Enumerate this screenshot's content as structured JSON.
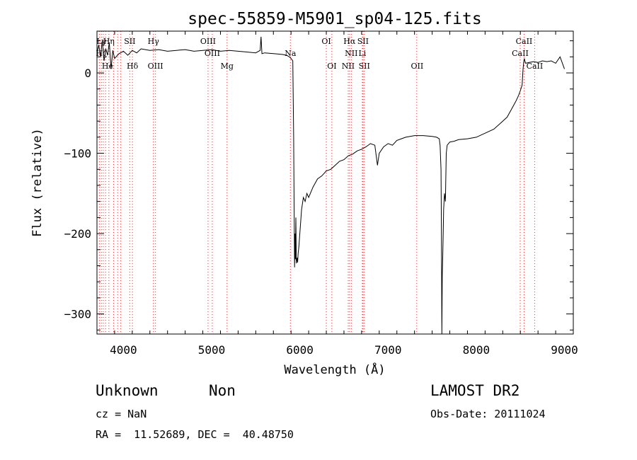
{
  "chart_data": {
    "type": "line",
    "title": "spec-55859-M5901_sp04-125.fits",
    "xlabel": "Wavelength (Å)",
    "ylabel": "Flux (relative)",
    "xlim": [
      3700,
      9100
    ],
    "ylim": [
      -325,
      52
    ],
    "xticks": [
      4000,
      5000,
      6000,
      7000,
      8000,
      9000
    ],
    "yticks": [
      0,
      -100,
      -200,
      -300
    ],
    "grid": false,
    "series": [
      {
        "x": [
          3700,
          3720,
          3740,
          3760,
          3780,
          3800,
          3820,
          3840,
          3860,
          3880,
          3900,
          3950,
          4000,
          4050,
          4100,
          4150,
          4200,
          4300,
          4400,
          4500,
          4600,
          4700,
          4800,
          4900,
          5000,
          5100,
          5200,
          5300,
          5400,
          5500,
          5550,
          5560,
          5570,
          5600,
          5700,
          5800,
          5850,
          5880,
          5900,
          5920,
          5930,
          5935,
          5940,
          5945,
          5950,
          5955,
          5960,
          5970,
          5975,
          5980,
          5990,
          6000,
          6020,
          6040,
          6060,
          6080,
          6100,
          6150,
          6200,
          6250,
          6300,
          6350,
          6400,
          6450,
          6500,
          6550,
          6600,
          6650,
          6700,
          6750,
          6800,
          6850,
          6880,
          6900,
          6950,
          7000,
          7050,
          7100,
          7150,
          7200,
          7300,
          7400,
          7500,
          7550,
          7580,
          7590,
          7600,
          7605,
          7610,
          7615,
          7620,
          7625,
          7630,
          7640,
          7650,
          7660,
          7670,
          7700,
          7750,
          7800,
          7900,
          8000,
          8100,
          8200,
          8300,
          8350,
          8400,
          8450,
          8480,
          8500,
          8520,
          8530,
          8540,
          8545,
          8550,
          8560,
          8600,
          8650,
          8700,
          8750,
          8800,
          8850,
          8900,
          8950,
          9000
        ],
        "y": [
          25,
          35,
          20,
          40,
          15,
          30,
          22,
          38,
          5,
          28,
          18,
          24,
          27,
          22,
          28,
          25,
          30,
          28,
          29,
          27,
          28,
          29,
          27,
          28,
          29,
          27,
          28,
          27,
          26,
          25,
          28,
          45,
          24,
          25,
          24,
          23,
          22,
          20,
          18,
          15,
          -80,
          -160,
          -242,
          -200,
          -232,
          -180,
          -237,
          -230,
          -236,
          -225,
          -215,
          -200,
          -170,
          -155,
          -160,
          -150,
          -155,
          -142,
          -132,
          -128,
          -122,
          -120,
          -115,
          -110,
          -108,
          -103,
          -101,
          -97,
          -95,
          -92,
          -88,
          -90,
          -115,
          -100,
          -92,
          -88,
          -90,
          -84,
          -82,
          -80,
          -78,
          -78,
          -79,
          -80,
          -82,
          -90,
          -120,
          -200,
          -325,
          -250,
          -230,
          -200,
          -170,
          -150,
          -160,
          -100,
          -90,
          -86,
          -85,
          -83,
          -82,
          -80,
          -75,
          -70,
          -60,
          -55,
          -45,
          -35,
          -28,
          -22,
          -15,
          5,
          15,
          18,
          15,
          12,
          13,
          14,
          13,
          15,
          14,
          15,
          12,
          20,
          5
        ]
      }
    ],
    "line_markers": [
      {
        "label": "Lγ",
        "x": 3750,
        "row": 1
      },
      {
        "label": "Hη",
        "x": 3835,
        "row": 1
      },
      {
        "label": "SII",
        "x": 4072,
        "row": 1
      },
      {
        "label": "Hγ",
        "x": 4340,
        "row": 1
      },
      {
        "label": "OIII",
        "x": 4959,
        "row": 1
      },
      {
        "label": "OI",
        "x": 6300,
        "row": 1
      },
      {
        "label": "Hα",
        "x": 6563,
        "row": 1
      },
      {
        "label": "SII",
        "x": 6716,
        "row": 1
      },
      {
        "label": "CaII",
        "x": 8542,
        "row": 1
      },
      {
        "label": "Hζ",
        "x": 3750,
        "row": 2
      },
      {
        "label": "OIII",
        "x": 5007,
        "row": 2
      },
      {
        "label": "Na",
        "x": 5893,
        "row": 2
      },
      {
        "label": "NII",
        "x": 6583,
        "row": 2
      },
      {
        "label": "Li",
        "x": 6708,
        "row": 2
      },
      {
        "label": "CaII",
        "x": 8498,
        "row": 2
      },
      {
        "label": "He",
        "x": 3820,
        "row": 3
      },
      {
        "label": "Hδ",
        "x": 4102,
        "row": 3
      },
      {
        "label": "OIII",
        "x": 4363,
        "row": 3
      },
      {
        "label": "Mg",
        "x": 5175,
        "row": 3
      },
      {
        "label": "OI",
        "x": 6363,
        "row": 3
      },
      {
        "label": "NII",
        "x": 6548,
        "row": 3
      },
      {
        "label": "SII",
        "x": 6731,
        "row": 3
      },
      {
        "label": "OII",
        "x": 7330,
        "row": 3
      },
      {
        "label": "CaII",
        "x": 8662,
        "row": 3
      }
    ],
    "marker_lines_x": [
      3727,
      3750,
      3771,
      3798,
      3835,
      3889,
      3934,
      3970,
      4072,
      4102,
      4340,
      4363,
      4959,
      5007,
      5175,
      5893,
      6300,
      6363,
      6548,
      6563,
      6583,
      6708,
      6716,
      6731,
      7325,
      8498,
      8542,
      8662
    ],
    "colors": {
      "line": "#000000",
      "marker": "#e03030",
      "axes": "#000000"
    }
  },
  "info": {
    "class_label": "Unknown",
    "subclass_label": "Non",
    "survey": "LAMOST DR2",
    "cz": "cz = NaN",
    "obs_date": "Obs-Date: 20111024",
    "coords": "RA =  11.52689, DEC =  40.48750"
  }
}
